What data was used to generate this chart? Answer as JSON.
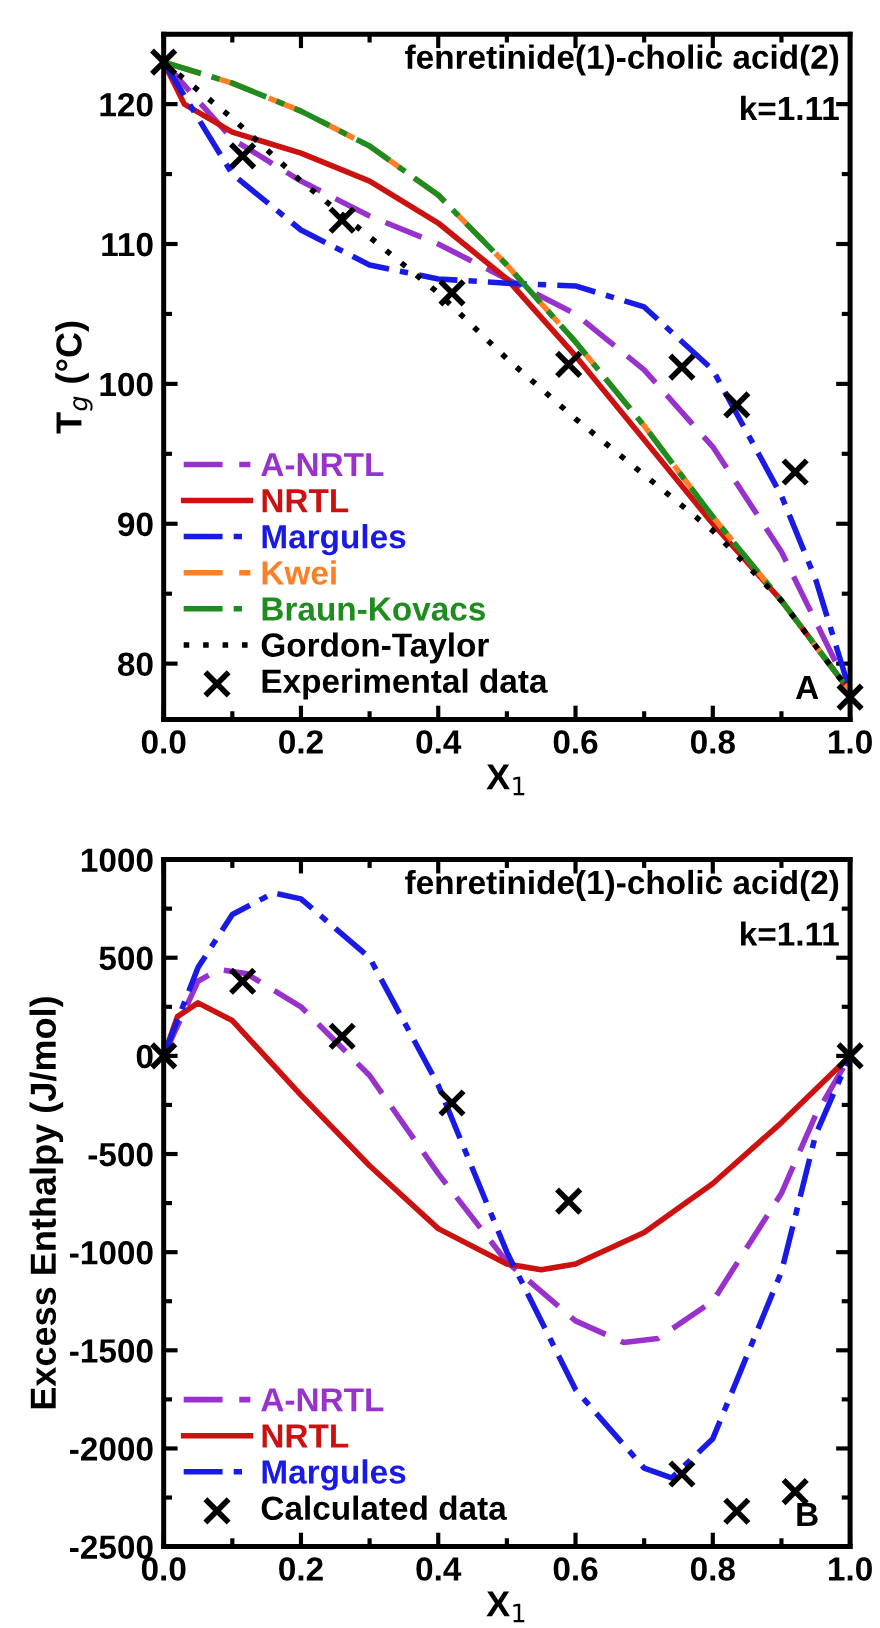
{
  "chart_data": [
    {
      "type": "line",
      "xlabel": "X$_{1}$",
      "ylabel": "T$_{g}$ (°C)",
      "xlim": [
        0,
        1
      ],
      "ylim": [
        76,
        125
      ],
      "xticks": [
        {
          "value": 0,
          "label": "0.0"
        },
        {
          "value": 0.2,
          "label": "0.2"
        },
        {
          "value": 0.4,
          "label": "0.4"
        },
        {
          "value": 0.6,
          "label": "0.6"
        },
        {
          "value": 0.8,
          "label": "0.8"
        },
        {
          "value": 1,
          "label": "1.0"
        }
      ],
      "yticks": [
        80,
        90,
        100,
        110,
        120
      ],
      "legend": "bottom left",
      "grid": false,
      "annotations": [
        "fenretinide(1)-cholic acid(2)",
        "k=1.11",
        "A"
      ],
      "series": [
        {
          "name": "A-NRTL",
          "color": "#9932cc",
          "line_style": "dashed",
          "x": [
            0,
            0.1,
            0.2,
            0.3,
            0.4,
            0.5,
            0.6,
            0.7,
            0.8,
            0.9,
            1
          ],
          "values": [
            123,
            117.5,
            114.5,
            112,
            110,
            107.5,
            105,
            101,
            95.5,
            88,
            78
          ]
        },
        {
          "name": "NRTL",
          "color": "#cc1111",
          "line_style": "solid",
          "x": [
            0,
            0.03,
            0.1,
            0.2,
            0.3,
            0.4,
            0.5,
            0.6,
            0.7,
            0.8,
            0.9,
            1
          ],
          "values": [
            123,
            120,
            118,
            116.5,
            114.5,
            111.5,
            107.5,
            102,
            96,
            90,
            84.5,
            78
          ]
        },
        {
          "name": "Margules",
          "color": "#1a1ae6",
          "line_style": "dashdot",
          "x": [
            0,
            0.05,
            0.1,
            0.2,
            0.3,
            0.4,
            0.5,
            0.6,
            0.7,
            0.8,
            0.9,
            0.95,
            1
          ],
          "values": [
            123,
            119,
            115,
            111,
            108.5,
            107.5,
            107.2,
            107,
            105.5,
            101,
            92,
            86,
            78
          ]
        },
        {
          "name": "Kwei",
          "color": "#ff7f27",
          "line_style": "dashed",
          "x": [
            0,
            0.1,
            0.2,
            0.3,
            0.4,
            0.5,
            0.6,
            0.7,
            0.8,
            0.9,
            1
          ],
          "values": [
            123,
            121.5,
            119.5,
            117,
            113.5,
            108.5,
            103,
            97,
            90.5,
            84.5,
            78
          ]
        },
        {
          "name": "Braun-Kovacs",
          "color": "#1e8c1e",
          "line_style": "dashdot",
          "x": [
            0,
            0.1,
            0.2,
            0.3,
            0.4,
            0.5,
            0.6,
            0.7,
            0.8,
            0.9,
            1
          ],
          "values": [
            123,
            121.5,
            119.5,
            117,
            113.5,
            108.5,
            103,
            97,
            90.5,
            84.5,
            78
          ]
        },
        {
          "name": "Gordon-Taylor",
          "color": "#000000",
          "line_style": "dotted",
          "x": [
            0,
            0.1,
            0.2,
            0.3,
            0.4,
            0.5,
            0.6,
            0.7,
            0.8,
            0.9,
            1
          ],
          "values": [
            123,
            119,
            114.5,
            110.5,
            106.5,
            101.8,
            97.5,
            93.5,
            89.5,
            84.5,
            78
          ]
        },
        {
          "name": "Experimental data",
          "type": "scatter",
          "marker": "cross",
          "color": "#000000",
          "x": [
            0,
            0.115,
            0.26,
            0.42,
            0.59,
            0.755,
            0.835,
            0.92,
            1.0
          ],
          "values": [
            123,
            116.3,
            111.7,
            106.5,
            101.4,
            101.2,
            98.5,
            93.7,
            77.6
          ]
        }
      ]
    },
    {
      "type": "line",
      "xlabel": "X$_{1}$",
      "ylabel": "Excess Enthalpy (J/mol)",
      "xlim": [
        0,
        1
      ],
      "ylim": [
        -2500,
        1000
      ],
      "xticks": [
        {
          "value": 0,
          "label": "0.0"
        },
        {
          "value": 0.2,
          "label": "0.2"
        },
        {
          "value": 0.4,
          "label": "0.4"
        },
        {
          "value": 0.6,
          "label": "0.6"
        },
        {
          "value": 0.8,
          "label": "0.8"
        },
        {
          "value": 1,
          "label": "1.0"
        }
      ],
      "yticks": [
        -2500,
        -2000,
        -1500,
        -1000,
        -500,
        0,
        500,
        1000
      ],
      "legend": "bottom left",
      "grid": false,
      "annotations": [
        "fenretinide(1)-cholic acid(2)",
        "k=1.11",
        "B"
      ],
      "series": [
        {
          "name": "A-NRTL",
          "color": "#9932cc",
          "line_style": "dashed",
          "x": [
            0,
            0.05,
            0.08,
            0.12,
            0.2,
            0.3,
            0.4,
            0.5,
            0.6,
            0.67,
            0.72,
            0.8,
            0.9,
            0.95,
            1
          ],
          "values": [
            0,
            380,
            440,
            420,
            250,
            -100,
            -600,
            -1050,
            -1350,
            -1460,
            -1440,
            -1250,
            -700,
            -300,
            0
          ]
        },
        {
          "name": "NRTL",
          "color": "#cc1111",
          "line_style": "solid",
          "x": [
            0,
            0.02,
            0.05,
            0.1,
            0.2,
            0.3,
            0.4,
            0.5,
            0.55,
            0.6,
            0.7,
            0.8,
            0.9,
            1
          ],
          "values": [
            0,
            200,
            270,
            180,
            -200,
            -560,
            -880,
            -1060,
            -1090,
            -1060,
            -900,
            -650,
            -340,
            0
          ]
        },
        {
          "name": "Margules",
          "color": "#1a1ae6",
          "line_style": "dashdot",
          "x": [
            0,
            0.05,
            0.1,
            0.16,
            0.2,
            0.3,
            0.4,
            0.5,
            0.6,
            0.7,
            0.74,
            0.8,
            0.9,
            0.95,
            1
          ],
          "values": [
            0,
            450,
            720,
            830,
            800,
            500,
            -150,
            -1000,
            -1700,
            -2100,
            -2150,
            -1950,
            -1100,
            -400,
            0
          ]
        },
        {
          "name": "Calculated data",
          "type": "scatter",
          "marker": "cross",
          "color": "#000000",
          "x": [
            0,
            0.115,
            0.26,
            0.42,
            0.59,
            0.755,
            0.835,
            0.92,
            1.0
          ],
          "values": [
            0,
            380,
            100,
            -240,
            -740,
            -2130,
            -2320,
            -2220,
            0
          ]
        }
      ]
    }
  ]
}
